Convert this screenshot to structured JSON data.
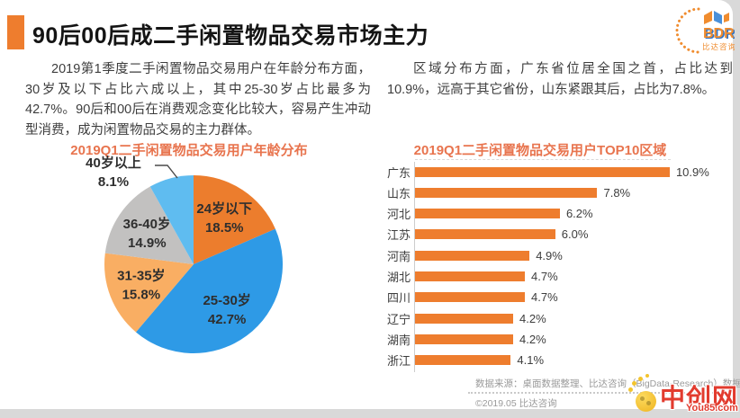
{
  "header": {
    "title": "90后00后成二手闲置物品交易市场主力"
  },
  "logo": {
    "abbr": "BDR",
    "name": "比达咨询"
  },
  "intro": {
    "left": "2019第1季度二手闲置物品交易用户在年龄分布方面，30岁及以下占比六成以上，其中25-30岁占比最多为42.7%。90后和00后在消费观念变化比较大，容易产生冲动型消费，成为闲置物品交易的主力群体。",
    "right": "区域分布方面，广东省位居全国之首，占比达到10.9%，远高于其它省份，山东紧跟其后，占比为7.8%。"
  },
  "chart_data": [
    {
      "type": "pie",
      "title": "2019Q1二手闲置物品交易用户年龄分布",
      "labels": [
        "24岁以下",
        "25-30岁",
        "31-35岁",
        "36-40岁",
        "40岁以上"
      ],
      "values": [
        18.5,
        42.7,
        15.8,
        14.9,
        8.1
      ],
      "value_suffix": "%",
      "colors": [
        "#EC7D2D",
        "#2E9AE6",
        "#F9AE63",
        "#C2C1C0",
        "#5FBCF0"
      ],
      "start_angle": "12-oclock",
      "direction": "clockwise",
      "outside_label_index": 4,
      "legend_position": "labels-on-slices"
    },
    {
      "type": "bar",
      "orientation": "horizontal",
      "title": "2019Q1二手闲置物品交易用户TOP10区域",
      "categories": [
        "广东",
        "山东",
        "河北",
        "江苏",
        "河南",
        "湖北",
        "四川",
        "辽宁",
        "湖南",
        "浙江"
      ],
      "values": [
        10.9,
        7.8,
        6.2,
        6.0,
        4.9,
        4.7,
        4.7,
        4.2,
        4.2,
        4.1
      ],
      "value_suffix": "%",
      "bar_color": "#EE7D2E",
      "xlim": [
        0,
        11.5
      ],
      "grid": false,
      "value_labels": true
    }
  ],
  "footer": {
    "source": "数据来源：桌面数据整理、比达咨询（BigData-Research）数据中心",
    "copyright": "©2019.05 比达咨询"
  },
  "watermark": {
    "site_name": "中创网",
    "site_url": "You85.com"
  },
  "colors": {
    "accent_orange": "#EE7D2E",
    "chart_title": "#E8744E",
    "body_text": "#3D3D3D",
    "footer_text": "#9A9A9A",
    "watermark_red": "#E23B2E"
  }
}
